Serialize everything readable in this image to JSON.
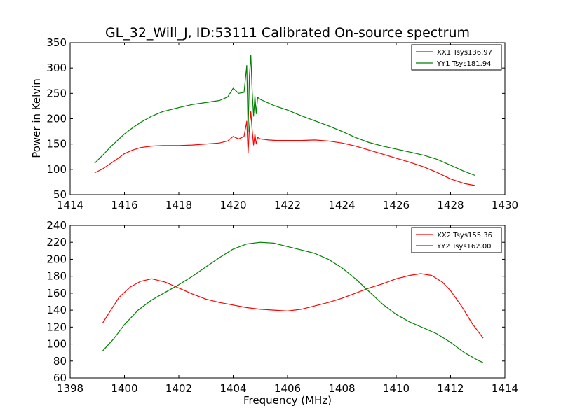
{
  "figure": {
    "title": "GL_32_Will_J, ID:53111 Calibrated On-source spectrum",
    "xlabel": "Frequency (MHz)"
  },
  "chart_data": [
    {
      "type": "line",
      "ylabel": "Power in Kelvin",
      "xlim": [
        1414,
        1430
      ],
      "ylim": [
        50,
        350
      ],
      "xticks": [
        "1414",
        "1416",
        "1418",
        "1420",
        "1422",
        "1424",
        "1426",
        "1428",
        "1430"
      ],
      "yticks": [
        "50",
        "100",
        "150",
        "200",
        "250",
        "300",
        "350"
      ],
      "legend_position": "top-right",
      "series": [
        {
          "name": "XX1 Tsys136.97",
          "color": "#ff0000",
          "x": [
            1414.9,
            1415.2,
            1415.5,
            1415.8,
            1416.0,
            1416.3,
            1416.6,
            1417.0,
            1417.4,
            1418.0,
            1418.5,
            1419.0,
            1419.5,
            1419.8,
            1420.0,
            1420.2,
            1420.4,
            1420.5,
            1420.55,
            1420.6,
            1420.65,
            1420.7,
            1420.75,
            1420.8,
            1420.85,
            1420.9,
            1421.0,
            1421.3,
            1421.6,
            1422.0,
            1422.5,
            1423.0,
            1423.5,
            1424.0,
            1424.5,
            1425.0,
            1425.5,
            1426.0,
            1426.5,
            1427.0,
            1427.5,
            1428.0,
            1428.5,
            1428.9
          ],
          "y": [
            93,
            101,
            112,
            123,
            131,
            138,
            143,
            146,
            147,
            147,
            148,
            150,
            152,
            156,
            165,
            160,
            165,
            195,
            132,
            183,
            214,
            178,
            148,
            170,
            150,
            163,
            160,
            158,
            157,
            157,
            157,
            158,
            156,
            152,
            146,
            138,
            130,
            122,
            114,
            105,
            94,
            81,
            72,
            68
          ]
        },
        {
          "name": "YY1 Tsys181.94",
          "color": "#008000",
          "x": [
            1414.9,
            1415.2,
            1415.5,
            1415.8,
            1416.0,
            1416.3,
            1416.6,
            1417.0,
            1417.4,
            1418.0,
            1418.5,
            1419.0,
            1419.5,
            1419.8,
            1420.0,
            1420.2,
            1420.4,
            1420.5,
            1420.55,
            1420.6,
            1420.65,
            1420.7,
            1420.75,
            1420.8,
            1420.85,
            1420.9,
            1421.0,
            1421.5,
            1422.0,
            1422.5,
            1423.0,
            1423.5,
            1424.0,
            1424.5,
            1425.0,
            1425.5,
            1426.0,
            1426.5,
            1427.0,
            1427.5,
            1428.0,
            1428.5,
            1428.9
          ],
          "y": [
            112,
            128,
            145,
            160,
            170,
            182,
            193,
            205,
            214,
            222,
            228,
            232,
            236,
            243,
            260,
            250,
            252,
            305,
            175,
            285,
            325,
            255,
            205,
            245,
            210,
            242,
            238,
            226,
            217,
            206,
            196,
            186,
            175,
            163,
            153,
            146,
            140,
            134,
            128,
            120,
            108,
            96,
            88
          ]
        }
      ]
    },
    {
      "type": "line",
      "xlabel": "Frequency (MHz)",
      "xlim": [
        1398,
        1414
      ],
      "ylim": [
        60,
        240
      ],
      "xticks": [
        "1398",
        "1400",
        "1402",
        "1404",
        "1406",
        "1408",
        "1410",
        "1412",
        "1414"
      ],
      "yticks": [
        "60",
        "80",
        "100",
        "120",
        "140",
        "160",
        "180",
        "200",
        "220",
        "240"
      ],
      "legend_position": "top-right",
      "series": [
        {
          "name": "XX2 Tsys155.36",
          "color": "#ff0000",
          "x": [
            1399.2,
            1399.5,
            1399.8,
            1400.2,
            1400.6,
            1401.0,
            1401.5,
            1402.0,
            1402.5,
            1403.0,
            1403.5,
            1404.0,
            1404.5,
            1405.0,
            1405.5,
            1406.0,
            1406.5,
            1407.0,
            1407.5,
            1408.0,
            1408.5,
            1409.0,
            1409.5,
            1410.0,
            1410.5,
            1410.9,
            1411.3,
            1411.7,
            1412.0,
            1412.4,
            1412.8,
            1413.2
          ],
          "y": [
            125,
            140,
            155,
            167,
            174,
            177,
            173,
            166,
            159,
            153,
            149,
            146,
            143,
            141,
            140,
            139,
            141,
            145,
            149,
            154,
            160,
            166,
            171,
            177,
            181,
            183,
            181,
            173,
            163,
            145,
            124,
            107
          ]
        },
        {
          "name": "YY2 Tsys162.00",
          "color": "#008000",
          "x": [
            1399.2,
            1399.6,
            1400.0,
            1400.5,
            1401.0,
            1401.5,
            1402.0,
            1402.5,
            1403.0,
            1403.5,
            1404.0,
            1404.5,
            1405.0,
            1405.5,
            1406.0,
            1406.5,
            1407.0,
            1407.5,
            1408.0,
            1408.5,
            1409.0,
            1409.5,
            1410.0,
            1410.5,
            1411.0,
            1411.5,
            1412.0,
            1412.5,
            1413.0,
            1413.2
          ],
          "y": [
            92,
            106,
            123,
            140,
            152,
            161,
            170,
            180,
            191,
            202,
            212,
            218,
            220,
            219,
            215,
            211,
            207,
            200,
            190,
            177,
            162,
            147,
            135,
            126,
            119,
            112,
            102,
            90,
            81,
            78
          ]
        }
      ]
    }
  ]
}
